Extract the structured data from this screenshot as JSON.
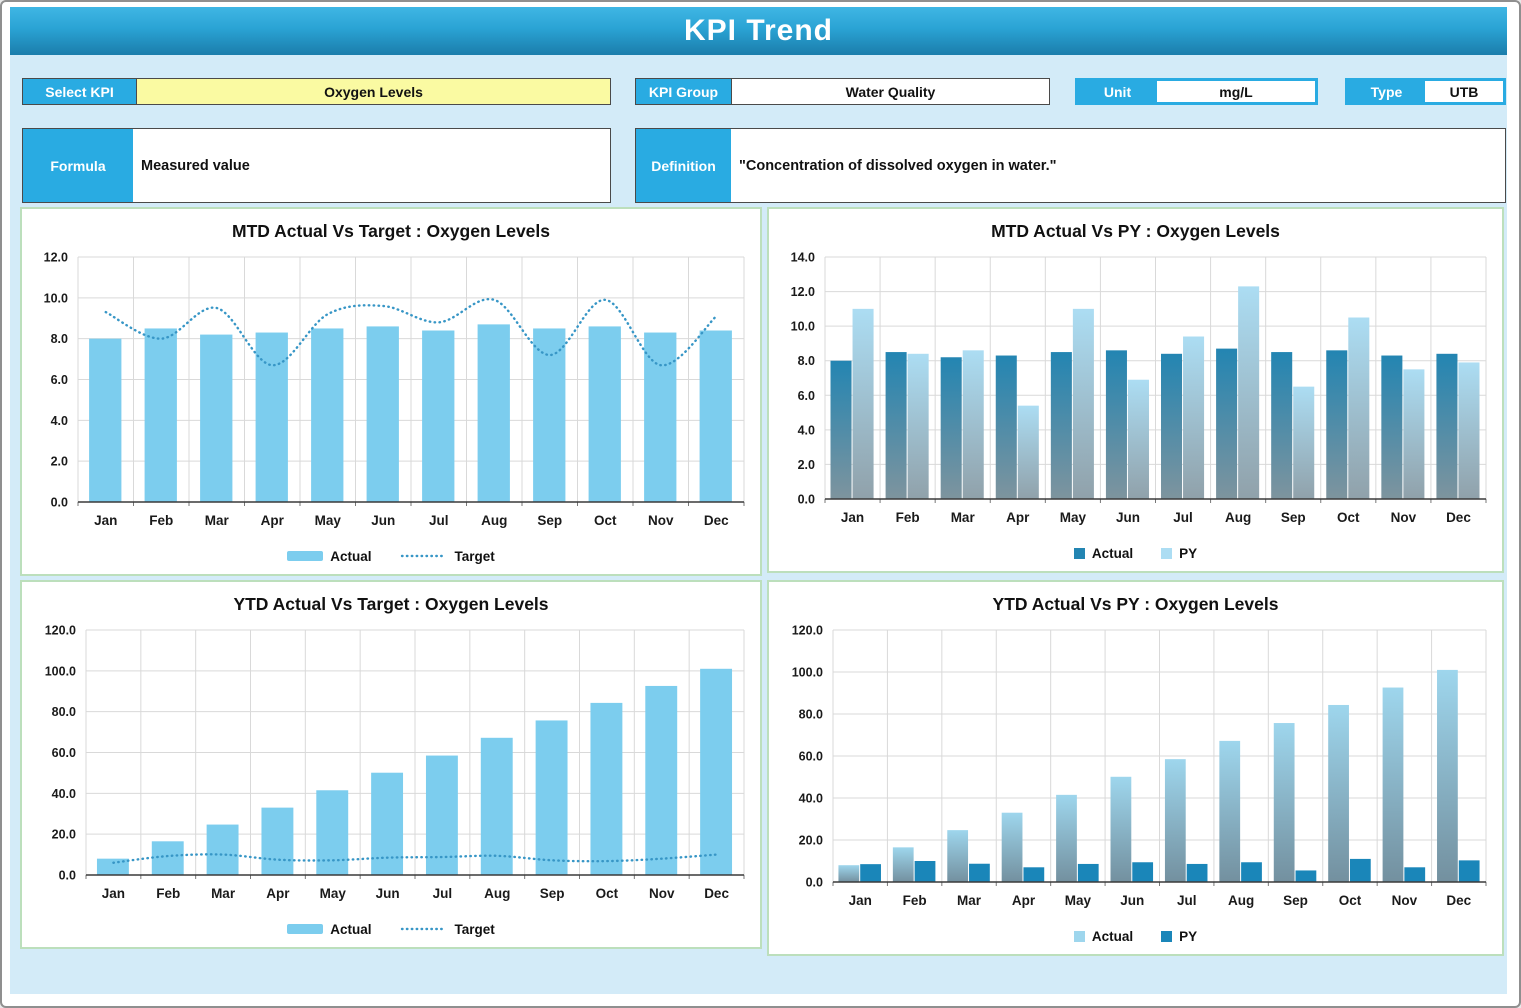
{
  "header": {
    "title": "KPI Trend"
  },
  "controls": {
    "select_kpi": {
      "label": "Select KPI",
      "value": "Oxygen Levels"
    },
    "kpi_group": {
      "label": "KPI Group",
      "value": "Water Quality"
    },
    "unit": {
      "label": "Unit",
      "value": "mg/L"
    },
    "type": {
      "label": "Type",
      "value": "UTB"
    },
    "formula": {
      "label": "Formula",
      "value": "Measured value"
    },
    "definition": {
      "label": "Definition",
      "value": "\"Concentration of dissolved oxygen in water.\""
    }
  },
  "colors": {
    "accent_blue": "#29abe2",
    "page_bg": "#d3ebf8",
    "panel_border": "#bcdfbc",
    "field_yellow": "#fafaa2",
    "bar_light": "#7ccdee",
    "target_line": "#3796c6",
    "grid": "#d9d9d9",
    "axis": "#3a3a3a"
  },
  "chart_data": [
    {
      "id": "mtd-target",
      "type": "bar",
      "title": "MTD Actual Vs Target : Oxygen Levels",
      "categories": [
        "Jan",
        "Feb",
        "Mar",
        "Apr",
        "May",
        "Jun",
        "Jul",
        "Aug",
        "Sep",
        "Oct",
        "Nov",
        "Dec"
      ],
      "ylim": [
        0,
        12
      ],
      "ytick": 2,
      "series": [
        {
          "name": "Actual",
          "kind": "bar",
          "swatch": "bar",
          "fill": {
            "kind": "solid",
            "color": "#7ccdee"
          },
          "values": [
            8.0,
            8.5,
            8.2,
            8.3,
            8.5,
            8.6,
            8.4,
            8.7,
            8.5,
            8.6,
            8.3,
            8.4
          ]
        },
        {
          "name": "Target",
          "kind": "line",
          "swatch": "line",
          "color": "#3796c6",
          "values": [
            9.3,
            8.0,
            9.5,
            6.7,
            9.2,
            9.6,
            8.8,
            9.9,
            7.2,
            9.9,
            6.7,
            9.1
          ]
        }
      ]
    },
    {
      "id": "mtd-py",
      "type": "bar",
      "title": "MTD Actual Vs PY : Oxygen Levels",
      "categories": [
        "Jan",
        "Feb",
        "Mar",
        "Apr",
        "May",
        "Jun",
        "Jul",
        "Aug",
        "Sep",
        "Oct",
        "Nov",
        "Dec"
      ],
      "ylim": [
        0,
        14
      ],
      "ytick": 2,
      "series": [
        {
          "name": "Actual",
          "kind": "bar",
          "swatch": "square",
          "fill": {
            "kind": "gradient",
            "top": "#2385b2",
            "bottom": "#7e949e"
          },
          "values": [
            8.0,
            8.5,
            8.2,
            8.3,
            8.5,
            8.6,
            8.4,
            8.7,
            8.5,
            8.6,
            8.3,
            8.4
          ]
        },
        {
          "name": "PY",
          "kind": "bar",
          "swatch": "square",
          "fill": {
            "kind": "gradient",
            "top": "#acddf3",
            "bottom": "#90a1aa"
          },
          "values": [
            11.0,
            8.4,
            8.6,
            5.4,
            11.0,
            6.9,
            9.4,
            12.3,
            6.5,
            10.5,
            7.5,
            7.9
          ]
        }
      ]
    },
    {
      "id": "ytd-target",
      "type": "bar",
      "title": "YTD Actual Vs Target : Oxygen Levels",
      "categories": [
        "Jan",
        "Feb",
        "Mar",
        "Apr",
        "May",
        "Jun",
        "Jul",
        "Aug",
        "Sep",
        "Oct",
        "Nov",
        "Dec"
      ],
      "ylim": [
        0,
        120
      ],
      "ytick": 20,
      "series": [
        {
          "name": "Actual",
          "kind": "bar",
          "swatch": "bar",
          "fill": {
            "kind": "solid",
            "color": "#7ccdee"
          },
          "values": [
            8.0,
            16.5,
            24.7,
            33.0,
            41.5,
            50.1,
            58.5,
            67.2,
            75.7,
            84.3,
            92.6,
            101.0
          ]
        },
        {
          "name": "Target",
          "kind": "line",
          "swatch": "line",
          "color": "#3796c6",
          "values": [
            6.0,
            9.3,
            10.0,
            7.5,
            7.2,
            8.5,
            8.8,
            9.4,
            7.2,
            6.8,
            8.0,
            10.0
          ]
        }
      ]
    },
    {
      "id": "ytd-py",
      "type": "bar",
      "title": "YTD Actual Vs PY : Oxygen Levels",
      "categories": [
        "Jan",
        "Feb",
        "Mar",
        "Apr",
        "May",
        "Jun",
        "Jul",
        "Aug",
        "Sep",
        "Oct",
        "Nov",
        "Dec"
      ],
      "ylim": [
        0,
        120
      ],
      "ytick": 20,
      "series": [
        {
          "name": "Actual",
          "kind": "bar",
          "swatch": "square",
          "fill": {
            "kind": "gradient",
            "top": "#9ed6ed",
            "bottom": "#73909f"
          },
          "values": [
            8.0,
            16.5,
            24.7,
            33.0,
            41.5,
            50.1,
            58.5,
            67.2,
            75.7,
            84.3,
            92.6,
            101.0
          ]
        },
        {
          "name": "PY",
          "kind": "bar",
          "swatch": "square",
          "fill": {
            "kind": "solid",
            "color": "#1a86b9"
          },
          "values": [
            8.5,
            10.0,
            8.7,
            7.0,
            8.6,
            9.4,
            8.6,
            9.4,
            5.5,
            11.0,
            7.0,
            10.3
          ]
        }
      ]
    }
  ]
}
